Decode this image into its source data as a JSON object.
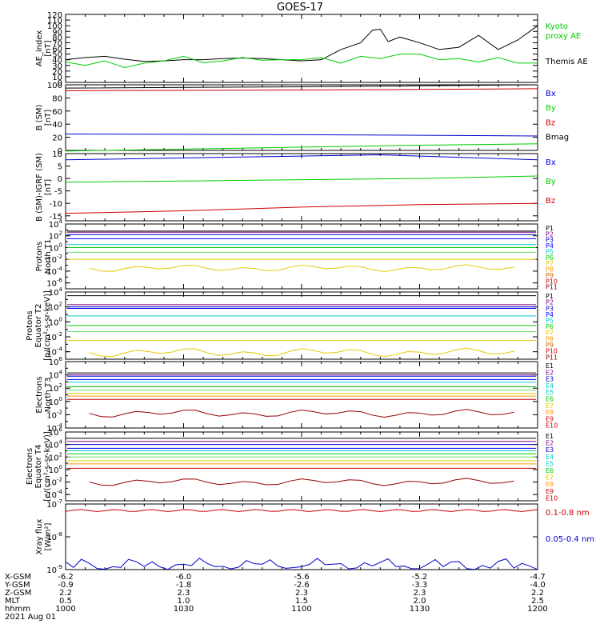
{
  "title": "GOES-17",
  "date": "2021 Aug 01",
  "colors": {
    "black": "#000000",
    "blue": "#0000cc",
    "green": "#00cc00",
    "red": "#cc0000",
    "yellow": "#e6c800",
    "cyan": "#00cccc",
    "darkblue": "#000088",
    "purple": "#7f007f",
    "orange": "#ff9900",
    "lightgreen": "#66e066",
    "paleyellow": "#eeee00"
  },
  "chart_data": [
    {
      "type": "line",
      "ylabel": "AE_index [nT]",
      "ylim": [
        0,
        120
      ],
      "yticks": [
        "0",
        "10",
        "20",
        "30",
        "40",
        "50",
        "60",
        "70",
        "80",
        "90",
        "100",
        "110",
        "120"
      ],
      "legend": [
        {
          "label": "Kyoto proxy AE",
          "color": "#00cc00"
        },
        {
          "label": "Themis AE",
          "color": "#000000"
        }
      ],
      "series": [
        {
          "name": "Themis AE",
          "color": "#000000",
          "x": [
            1000,
            1005,
            1010,
            1015,
            1020,
            1025,
            1030,
            1035,
            1040,
            1045,
            1050,
            1055,
            1100,
            1105,
            1110,
            1115,
            1118,
            1120,
            1122,
            1125,
            1130,
            1135,
            1140,
            1145,
            1150,
            1155,
            1200
          ],
          "y": [
            40,
            44,
            46,
            41,
            37,
            38,
            40,
            40,
            42,
            43,
            42,
            40,
            38,
            40,
            58,
            70,
            92,
            94,
            72,
            80,
            70,
            58,
            62,
            83,
            58,
            75,
            100
          ]
        },
        {
          "name": "Kyoto proxy AE",
          "color": "#00cc00",
          "x": [
            1000,
            1005,
            1010,
            1015,
            1020,
            1025,
            1030,
            1035,
            1040,
            1045,
            1050,
            1055,
            1100,
            1105,
            1110,
            1115,
            1120,
            1125,
            1130,
            1135,
            1140,
            1145,
            1150,
            1155,
            1200
          ],
          "y": [
            36,
            30,
            38,
            26,
            34,
            38,
            46,
            35,
            38,
            44,
            39,
            40,
            40,
            44,
            34,
            46,
            42,
            50,
            50,
            40,
            42,
            36,
            44,
            34,
            34
          ]
        }
      ]
    },
    {
      "type": "line",
      "ylabel": "B (SM) [nT]",
      "ylim": [
        0,
        100
      ],
      "yticks": [
        "0",
        "20",
        "40",
        "60",
        "80",
        "100"
      ],
      "legend": [
        {
          "label": "Bx",
          "color": "#0000cc"
        },
        {
          "label": "By",
          "color": "#00cc00"
        },
        {
          "label": "Bz",
          "color": "#cc0000"
        },
        {
          "label": "Bmag",
          "color": "#000000"
        }
      ],
      "series": [
        {
          "name": "Bmag",
          "color": "#000000",
          "x": [
            1000,
            1100,
            1200
          ],
          "y": [
            95,
            97,
            100
          ]
        },
        {
          "name": "Bz",
          "color": "#cc0000",
          "x": [
            1000,
            1100,
            1200
          ],
          "y": [
            91,
            92,
            94
          ]
        },
        {
          "name": "Bx",
          "color": "#0000cc",
          "x": [
            1000,
            1100,
            1200
          ],
          "y": [
            25,
            24,
            22
          ]
        },
        {
          "name": "By",
          "color": "#00cc00",
          "x": [
            1000,
            1030,
            1100,
            1130,
            1200
          ],
          "y": [
            -1,
            2,
            5,
            8,
            10
          ]
        }
      ]
    },
    {
      "type": "line",
      "ylabel": "B (SM)-IGRF (SM) [nT]",
      "ylim": [
        -17,
        10
      ],
      "yticks": [
        "-15",
        "-10",
        "-5",
        "0",
        "5",
        "10"
      ],
      "legend": [
        {
          "label": "Bx",
          "color": "#0000cc"
        },
        {
          "label": "By",
          "color": "#00cc00"
        },
        {
          "label": "Bz",
          "color": "#cc0000"
        }
      ],
      "series": [
        {
          "name": "Bx",
          "color": "#0000cc",
          "x": [
            1000,
            1020,
            1040,
            1100,
            1120,
            1140,
            1200
          ],
          "y": [
            7.5,
            8.0,
            8.5,
            9.0,
            9.5,
            8.5,
            7.5
          ]
        },
        {
          "name": "By",
          "color": "#00cc00",
          "x": [
            1000,
            1030,
            1100,
            1130,
            1200
          ],
          "y": [
            -1.5,
            -1.0,
            -0.5,
            0,
            1.0
          ]
        },
        {
          "name": "Bz",
          "color": "#cc0000",
          "x": [
            1000,
            1030,
            1100,
            1130,
            1200
          ],
          "y": [
            -14,
            -13,
            -11.5,
            -10.5,
            -10
          ]
        }
      ]
    },
    {
      "type": "line",
      "log": true,
      "ylabel": "Protons North T1",
      "ylim_exp": [
        -7,
        4
      ],
      "ytick_exps": [
        -6,
        -4,
        -2,
        0,
        2,
        4
      ],
      "legend": [
        "P1",
        "P2",
        "P3",
        "P4",
        "P5",
        "P6",
        "P7",
        "P8",
        "P9",
        "P10",
        "P11"
      ],
      "legend_colors": [
        "#000000",
        "#7f007f",
        "#0000cc",
        "#0000ff",
        "#00cccc",
        "#00cc00",
        "#e6c800",
        "#ff9900",
        "#cc6600",
        "#cc0000",
        "#990000"
      ],
      "levels": [
        2.8,
        2.6,
        2.2,
        1.5,
        0.5,
        0,
        -0.8,
        -2.0
      ],
      "level_colors": [
        "#000000",
        "#7f007f",
        "#0000cc",
        "#0000ff",
        "#00cccc",
        "#00cc00",
        "#66e066",
        "#e6c800"
      ],
      "wavy": {
        "color": "#e6c800",
        "base": -3.5
      }
    },
    {
      "type": "line",
      "log": true,
      "ylabel": "Protons Equator T2 [p/(cm²-s-sr-keV)]",
      "ylim_exp": [
        -5,
        4
      ],
      "ytick_exps": [
        -4,
        -2,
        0,
        2,
        4
      ],
      "legend": [
        "P1",
        "P2",
        "P3",
        "P4",
        "P5",
        "P6",
        "P7",
        "P8",
        "P9",
        "P10",
        "P11"
      ],
      "legend_colors": [
        "#000000",
        "#7f007f",
        "#0000cc",
        "#0000ff",
        "#00cccc",
        "#00cc00",
        "#e6c800",
        "#ff9900",
        "#cc6600",
        "#cc0000",
        "#990000"
      ],
      "levels": [
        3.5,
        2.3,
        2.0,
        1.8,
        0.8,
        -0.5,
        -1.3,
        -2.5
      ],
      "level_colors": [
        "#000000",
        "#7f007f",
        "#0000cc",
        "#0000ff",
        "#00cccc",
        "#00cc00",
        "#66e066",
        "#e6c800"
      ],
      "wavy": {
        "color": "#e6c800",
        "base": -4.1
      }
    },
    {
      "type": "line",
      "log": true,
      "ylabel": "Electrons North T3",
      "ylim_exp": [
        -4,
        6
      ],
      "ytick_exps": [
        -4,
        -2,
        0,
        2,
        4,
        6
      ],
      "legend": [
        "E1",
        "E2",
        "E3",
        "E4",
        "E5",
        "E6",
        "E7",
        "E8",
        "E9",
        "E10"
      ],
      "legend_colors": [
        "#000000",
        "#7f007f",
        "#0000cc",
        "#00cccc",
        "#00cccc",
        "#00cc00",
        "#e6c800",
        "#ff9900",
        "#cc0000",
        "#cc0000"
      ],
      "levels": [
        4.3,
        4.0,
        3.8,
        3.3,
        2.9,
        2.2,
        1.7,
        1.2,
        0.8,
        0.3
      ],
      "level_colors": [
        "#000000",
        "#7f007f",
        "#0000cc",
        "#0000ff",
        "#00cccc",
        "#00cc00",
        "#66e066",
        "#e6c800",
        "#ff9900",
        "#cc0000"
      ],
      "wavy": {
        "color": "#990000",
        "base": -1.8
      }
    },
    {
      "type": "line",
      "log": true,
      "ylabel": "Electrons Equator T4 [e/(cm²-s-sr-keV)]",
      "ylim_exp": [
        -5,
        6
      ],
      "ytick_exps": [
        -4,
        -2,
        0,
        2,
        4,
        6
      ],
      "legend": [
        "E1",
        "E2",
        "E3",
        "E4",
        "E5",
        "E6",
        "E7",
        "E8",
        "E9",
        "E10"
      ],
      "legend_colors": [
        "#000000",
        "#7f007f",
        "#0000cc",
        "#00cccc",
        "#00cccc",
        "#00cc00",
        "#e6c800",
        "#ff9900",
        "#cc0000",
        "#cc0000"
      ],
      "levels": [
        5.0,
        4.5,
        4.0,
        3.4,
        3.0,
        2.5,
        2.0,
        1.4,
        0.9,
        0.2
      ],
      "level_colors": [
        "#000000",
        "#7f007f",
        "#0000cc",
        "#0000ff",
        "#00cccc",
        "#00cc00",
        "#66e066",
        "#e6c800",
        "#ff9900",
        "#cc0000"
      ],
      "wavy": {
        "color": "#990000",
        "base": -2.0
      }
    },
    {
      "type": "line",
      "log": true,
      "ylabel": "Xray flux [W/m²]",
      "ylim_exp": [
        -9,
        -7
      ],
      "ytick_exps": [
        -9,
        -8,
        -7
      ],
      "legend": [
        {
          "label": "0.1-0.8 nm",
          "color": "#cc0000"
        },
        {
          "label": "0.05-0.4 nm",
          "color": "#0000cc"
        }
      ],
      "series": [
        {
          "name": "0.1-0.8 nm",
          "color": "#cc0000",
          "level": -7.2
        },
        {
          "name": "0.05-0.4 nm",
          "color": "#0000cc",
          "level": -9.0
        }
      ]
    }
  ],
  "xaxis": {
    "labels": [
      "X-GSM",
      "Y-GSM",
      "Z-GSM",
      "MLT",
      "hhmm"
    ],
    "rows": [
      [
        "-6.2",
        "-6.0",
        "-5.6",
        "-5.2",
        "-4.7"
      ],
      [
        "-0.9",
        "-1.8",
        "-2.6",
        "-3.3",
        "-4.0"
      ],
      [
        "2.2",
        "2.3",
        "2.3",
        "2.3",
        "2.2"
      ],
      [
        "0.5",
        "1.0",
        "1.5",
        "2.0",
        "2.5"
      ],
      [
        "1000",
        "1030",
        "1100",
        "1130",
        "1200"
      ]
    ]
  }
}
